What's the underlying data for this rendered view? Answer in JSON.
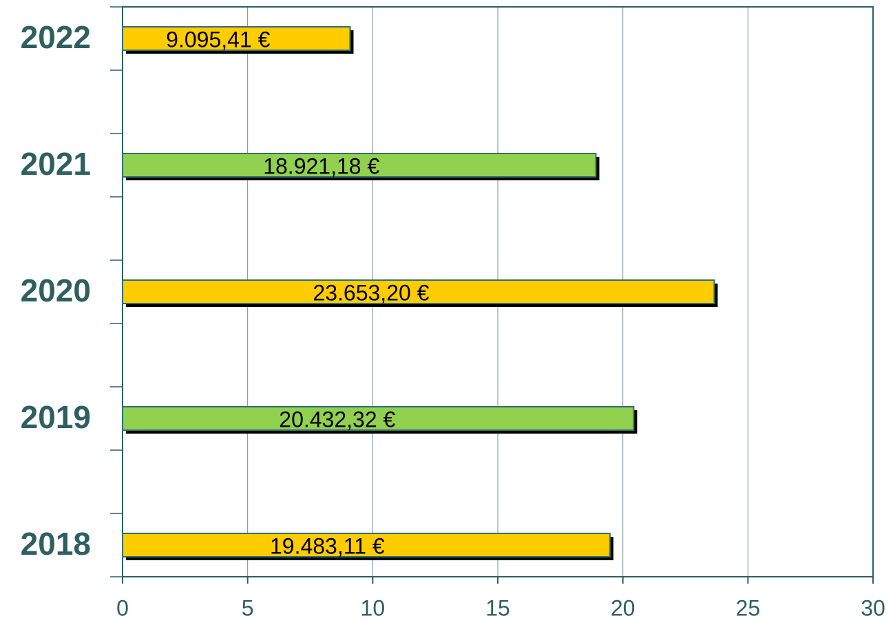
{
  "chart_data": {
    "type": "bar",
    "orientation": "horizontal",
    "categories": [
      "2018",
      "2019",
      "2020",
      "2021",
      "2022"
    ],
    "values": [
      19.48311,
      20.43232,
      23.6532,
      18.92118,
      9.09541
    ],
    "value_labels": [
      "19.483,11 €",
      "20.432,32 €",
      "23.653,20 €",
      "18.921,18 €",
      "9.095,41 €"
    ],
    "colors": [
      "#ffcc00",
      "#92d050",
      "#ffcc00",
      "#92d050",
      "#ffcc00"
    ],
    "xlim": [
      0,
      30
    ],
    "xticks": [
      0,
      5,
      10,
      15,
      20,
      25,
      30
    ],
    "grid": true
  }
}
